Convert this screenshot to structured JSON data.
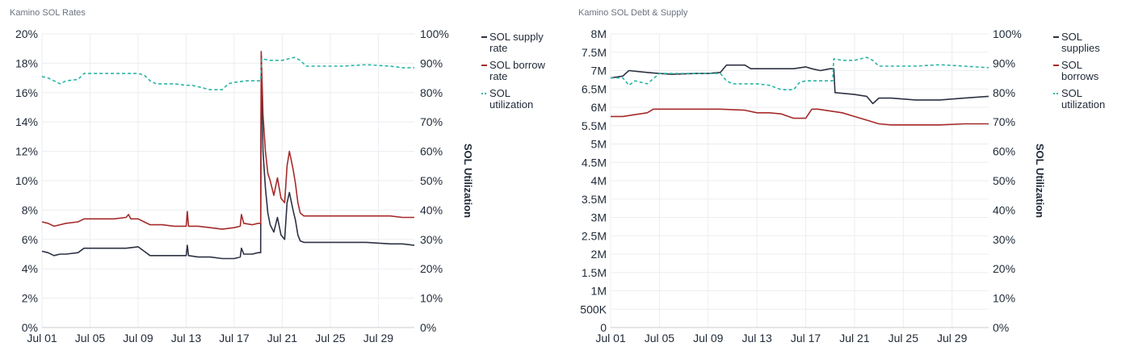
{
  "charts": [
    {
      "title": "Kamino SOL Rates",
      "left_ticks": [
        "0%",
        "2%",
        "4%",
        "6%",
        "8%",
        "10%",
        "12%",
        "14%",
        "16%",
        "18%",
        "20%"
      ],
      "right_ticks": [
        "0%",
        "10%",
        "20%",
        "30%",
        "40%",
        "50%",
        "60%",
        "70%",
        "80%",
        "90%",
        "100%"
      ],
      "x_ticks": [
        "Jul 01",
        "Jul 05",
        "Jul 09",
        "Jul 13",
        "Jul 17",
        "Jul 21",
        "Jul 25",
        "Jul 29"
      ],
      "right_axis_label": "SOL Utilization",
      "legend": [
        "SOL supply rate",
        "SOL borrow rate",
        "SOL utilization"
      ]
    },
    {
      "title": "Kamino SOL Debt & Supply",
      "left_ticks": [
        "0",
        "500K",
        "1M",
        "1.5M",
        "2M",
        "2.5M",
        "3M",
        "3.5M",
        "4M",
        "4.5M",
        "5M",
        "5.5M",
        "6M",
        "6.5M",
        "7M",
        "7.5M",
        "8M"
      ],
      "right_ticks": [
        "0%",
        "10%",
        "20%",
        "30%",
        "40%",
        "50%",
        "60%",
        "70%",
        "80%",
        "90%",
        "100%"
      ],
      "x_ticks": [
        "Jul 01",
        "Jul 05",
        "Jul 09",
        "Jul 13",
        "Jul 17",
        "Jul 21",
        "Jul 25",
        "Jul 29"
      ],
      "right_axis_label": "SOL Utilization",
      "legend": [
        "SOL supplies",
        "SOL borrows",
        "SOL utilization"
      ]
    }
  ],
  "colors": {
    "supply": "#2d3142",
    "borrow": "#a62a2a",
    "utilization": "#2ab5a5",
    "grid": "#ebedf0"
  },
  "chart_data": [
    {
      "type": "line",
      "title": "Kamino SOL Rates",
      "xlim_days": [
        1,
        32
      ],
      "ylim_left": [
        0,
        20
      ],
      "ylim_right": [
        0,
        100
      ],
      "ylabel_right": "SOL Utilization",
      "legend_position": "right",
      "series": [
        {
          "name": "SOL supply rate",
          "axis": "left",
          "style": "solid",
          "points": [
            [
              1,
              5.2
            ],
            [
              1.5,
              5.1
            ],
            [
              2,
              4.9
            ],
            [
              2.5,
              5.0
            ],
            [
              3,
              5.0
            ],
            [
              4,
              5.1
            ],
            [
              4.5,
              5.4
            ],
            [
              6,
              5.4
            ],
            [
              8,
              5.4
            ],
            [
              9,
              5.5
            ],
            [
              9.5,
              5.2
            ],
            [
              10,
              4.9
            ],
            [
              11,
              4.9
            ],
            [
              12,
              4.9
            ],
            [
              13,
              4.9
            ],
            [
              13.1,
              5.6
            ],
            [
              13.2,
              4.9
            ],
            [
              14,
              4.8
            ],
            [
              15,
              4.8
            ],
            [
              16,
              4.7
            ],
            [
              17,
              4.7
            ],
            [
              17.5,
              4.8
            ],
            [
              17.6,
              5.4
            ],
            [
              17.8,
              5.0
            ],
            [
              18.5,
              5.0
            ],
            [
              19,
              5.1
            ],
            [
              19.2,
              5.1
            ],
            [
              19.25,
              18.5
            ],
            [
              19.4,
              12.0
            ],
            [
              19.6,
              9.5
            ],
            [
              19.8,
              7.8
            ],
            [
              20,
              7.0
            ],
            [
              20.3,
              6.5
            ],
            [
              20.6,
              7.5
            ],
            [
              20.9,
              6.3
            ],
            [
              21.2,
              6.0
            ],
            [
              21.4,
              8.5
            ],
            [
              21.6,
              9.2
            ],
            [
              21.9,
              8.0
            ],
            [
              22.1,
              7.3
            ],
            [
              22.3,
              6.3
            ],
            [
              22.5,
              5.9
            ],
            [
              22.8,
              5.8
            ],
            [
              23,
              5.8
            ],
            [
              24,
              5.8
            ],
            [
              26,
              5.8
            ],
            [
              28,
              5.8
            ],
            [
              30,
              5.7
            ],
            [
              31,
              5.7
            ],
            [
              32,
              5.6
            ]
          ]
        },
        {
          "name": "SOL borrow rate",
          "axis": "left",
          "style": "solid",
          "points": [
            [
              1,
              7.2
            ],
            [
              1.5,
              7.1
            ],
            [
              2,
              6.9
            ],
            [
              2.5,
              7.0
            ],
            [
              3,
              7.1
            ],
            [
              4,
              7.2
            ],
            [
              4.5,
              7.4
            ],
            [
              6,
              7.4
            ],
            [
              7,
              7.4
            ],
            [
              8,
              7.5
            ],
            [
              8.2,
              7.7
            ],
            [
              8.4,
              7.4
            ],
            [
              9,
              7.4
            ],
            [
              9.5,
              7.2
            ],
            [
              10,
              7.0
            ],
            [
              11,
              7.0
            ],
            [
              12,
              6.9
            ],
            [
              13,
              6.9
            ],
            [
              13.1,
              7.9
            ],
            [
              13.2,
              6.9
            ],
            [
              14,
              6.9
            ],
            [
              15,
              6.8
            ],
            [
              16,
              6.7
            ],
            [
              17,
              6.8
            ],
            [
              17.5,
              6.9
            ],
            [
              17.6,
              7.7
            ],
            [
              17.8,
              7.1
            ],
            [
              18.5,
              7.0
            ],
            [
              19,
              7.1
            ],
            [
              19.2,
              7.1
            ],
            [
              19.25,
              18.8
            ],
            [
              19.4,
              14.5
            ],
            [
              19.6,
              12.0
            ],
            [
              19.8,
              10.5
            ],
            [
              20,
              10.0
            ],
            [
              20.3,
              9.0
            ],
            [
              20.6,
              10.2
            ],
            [
              20.9,
              8.8
            ],
            [
              21.2,
              8.5
            ],
            [
              21.4,
              11.0
            ],
            [
              21.6,
              12.0
            ],
            [
              21.9,
              10.8
            ],
            [
              22.1,
              9.8
            ],
            [
              22.3,
              8.5
            ],
            [
              22.5,
              7.8
            ],
            [
              22.8,
              7.6
            ],
            [
              23,
              7.6
            ],
            [
              24,
              7.6
            ],
            [
              26,
              7.6
            ],
            [
              28,
              7.6
            ],
            [
              30,
              7.6
            ],
            [
              31,
              7.5
            ],
            [
              32,
              7.5
            ]
          ]
        },
        {
          "name": "SOL utilization",
          "axis": "right",
          "style": "dashed",
          "points": [
            [
              1,
              85.5
            ],
            [
              1.5,
              85
            ],
            [
              2,
              84
            ],
            [
              2.5,
              83
            ],
            [
              3,
              84
            ],
            [
              4,
              84.5
            ],
            [
              4.5,
              86.5
            ],
            [
              6,
              86.5
            ],
            [
              8,
              86.5
            ],
            [
              9,
              86.5
            ],
            [
              9.5,
              86
            ],
            [
              10,
              84
            ],
            [
              10.5,
              83
            ],
            [
              12,
              83
            ],
            [
              13,
              82.5
            ],
            [
              13.5,
              82.5
            ],
            [
              14,
              82
            ],
            [
              15,
              81
            ],
            [
              16,
              81
            ],
            [
              16.5,
              83
            ],
            [
              17,
              83.5
            ],
            [
              18,
              84
            ],
            [
              19,
              84
            ],
            [
              19.2,
              84
            ],
            [
              19.3,
              91.5
            ],
            [
              20,
              91
            ],
            [
              21,
              91
            ],
            [
              22,
              92
            ],
            [
              22.5,
              91
            ],
            [
              23,
              89
            ],
            [
              24,
              89
            ],
            [
              26,
              89
            ],
            [
              28,
              89.5
            ],
            [
              30,
              89
            ],
            [
              31,
              88.5
            ],
            [
              32,
              88.5
            ]
          ]
        }
      ]
    },
    {
      "type": "line",
      "title": "Kamino SOL Debt & Supply",
      "xlim_days": [
        1,
        32
      ],
      "ylim_left": [
        0,
        8000000
      ],
      "ylim_right": [
        0,
        100
      ],
      "ylabel_right": "SOL Utilization",
      "legend_position": "right",
      "series": [
        {
          "name": "SOL supplies",
          "axis": "left",
          "style": "solid",
          "points": [
            [
              1,
              6800000.0
            ],
            [
              2,
              6850000.0
            ],
            [
              2.5,
              7000000.0
            ],
            [
              4,
              6950000.0
            ],
            [
              5,
              6920000.0
            ],
            [
              6,
              6900000.0
            ],
            [
              8,
              6920000.0
            ],
            [
              9,
              6920000.0
            ],
            [
              10,
              6950000.0
            ],
            [
              10.5,
              7150000.0
            ],
            [
              12,
              7150000.0
            ],
            [
              12.5,
              7050000.0
            ],
            [
              14,
              7050000.0
            ],
            [
              16,
              7050000.0
            ],
            [
              17,
              7100000.0
            ],
            [
              17.5,
              7050000.0
            ],
            [
              18.2,
              7000000.0
            ],
            [
              19,
              7050000.0
            ],
            [
              19.3,
              7050000.0
            ],
            [
              19.4,
              6400000.0
            ],
            [
              21,
              6350000.0
            ],
            [
              22,
              6300000.0
            ],
            [
              22.5,
              6100000.0
            ],
            [
              23,
              6250000.0
            ],
            [
              24,
              6250000.0
            ],
            [
              26,
              6200000.0
            ],
            [
              28,
              6200000.0
            ],
            [
              30,
              6250000.0
            ],
            [
              32,
              6300000.0
            ]
          ]
        },
        {
          "name": "SOL borrows",
          "axis": "left",
          "style": "solid",
          "points": [
            [
              1,
              5750000.0
            ],
            [
              2,
              5750000.0
            ],
            [
              3,
              5800000.0
            ],
            [
              4,
              5850000.0
            ],
            [
              4.5,
              5950000.0
            ],
            [
              6,
              5950000.0
            ],
            [
              8,
              5950000.0
            ],
            [
              10,
              5950000.0
            ],
            [
              12,
              5920000.0
            ],
            [
              13,
              5850000.0
            ],
            [
              14,
              5850000.0
            ],
            [
              15,
              5820000.0
            ],
            [
              16,
              5700000.0
            ],
            [
              17,
              5700000.0
            ],
            [
              17.5,
              5950000.0
            ],
            [
              18,
              5950000.0
            ],
            [
              19,
              5900000.0
            ],
            [
              20,
              5850000.0
            ],
            [
              21,
              5750000.0
            ],
            [
              22,
              5650000.0
            ],
            [
              23,
              5550000.0
            ],
            [
              24,
              5520000.0
            ],
            [
              26,
              5520000.0
            ],
            [
              28,
              5520000.0
            ],
            [
              30,
              5550000.0
            ],
            [
              32,
              5550000.0
            ]
          ]
        },
        {
          "name": "SOL utilization",
          "axis": "right",
          "style": "dashed",
          "points": [
            [
              1,
              85
            ],
            [
              2,
              85
            ],
            [
              2.5,
              82.5
            ],
            [
              3,
              84
            ],
            [
              4,
              83
            ],
            [
              5,
              86.5
            ],
            [
              6,
              86.5
            ],
            [
              8,
              86.5
            ],
            [
              10,
              86.5
            ],
            [
              10.5,
              84
            ],
            [
              11,
              83
            ],
            [
              13,
              83
            ],
            [
              14,
              82.5
            ],
            [
              15,
              81
            ],
            [
              16,
              81
            ],
            [
              16.5,
              83.5
            ],
            [
              17,
              84
            ],
            [
              18,
              84
            ],
            [
              19.2,
              84
            ],
            [
              19.3,
              91.5
            ],
            [
              20,
              91
            ],
            [
              21,
              91
            ],
            [
              22,
              92
            ],
            [
              22.5,
              91
            ],
            [
              23,
              89
            ],
            [
              24,
              89
            ],
            [
              26,
              89
            ],
            [
              28,
              89.5
            ],
            [
              30,
              89
            ],
            [
              32,
              88.5
            ]
          ]
        }
      ]
    }
  ]
}
